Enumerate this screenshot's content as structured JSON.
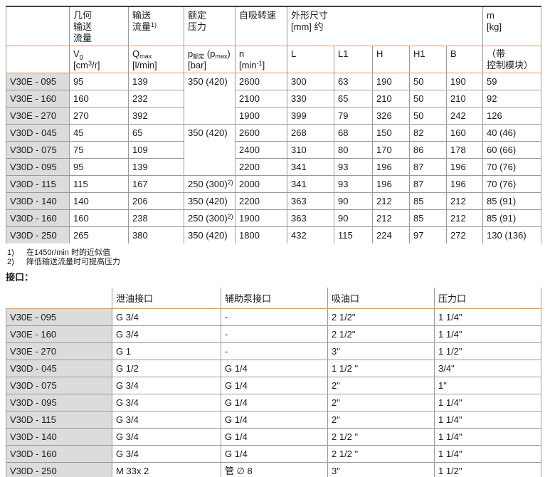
{
  "table1": {
    "h1": {
      "geo_flow": [
        "几何",
        "输送",
        "流量"
      ],
      "flow": [
        "输送",
        "流量"
      ],
      "flow_sup": "1)",
      "rated_pressure": [
        "额定",
        "压力"
      ],
      "speed": "自吸转速",
      "dims": [
        "外形尺寸",
        "[mm] 约"
      ],
      "mass": [
        "m",
        "[kg]"
      ]
    },
    "h2": {
      "vg_base": "V",
      "vg_sub": "g",
      "vg_unit_pre": "[cm",
      "vg_unit_sup": "3",
      "vg_unit_post": "/r]",
      "q_base": "Q",
      "q_sub": "max",
      "q_unit": "[l/min]",
      "p_base": "p",
      "p_sub": "额定",
      "p_mid": " (p",
      "p_sub2": "max",
      "p_close": ")",
      "p_unit": "[bar]",
      "n_base": "n",
      "n_unit_pre": "[min",
      "n_unit_sup": "-1",
      "n_unit_post": "]",
      "dim_l": "L",
      "dim_l1": "L1",
      "dim_h": "H",
      "dim_h1": "H1",
      "dim_b": "B",
      "mass_note": [
        "（带",
        "控制模块）"
      ]
    },
    "rows": [
      {
        "model": "V30E - 095",
        "vg": "95",
        "qmax": "139",
        "p": {
          "text": "350 (420)",
          "sup": "",
          "rowspan": 3
        },
        "n": "2600",
        "L": "300",
        "L1": "63",
        "H": "190",
        "H1": "50",
        "B": "190",
        "m": "59"
      },
      {
        "model": "V30E - 160",
        "vg": "160",
        "qmax": "232",
        "p": null,
        "n": "2100",
        "L": "330",
        "L1": "65",
        "H": "210",
        "H1": "50",
        "B": "210",
        "m": "92"
      },
      {
        "model": "V30E - 270",
        "vg": "270",
        "qmax": "392",
        "p": null,
        "n": "1900",
        "L": "399",
        "L1": "79",
        "H": "326",
        "H1": "50",
        "B": "242",
        "m": "126"
      },
      {
        "model": "V30D - 045",
        "vg": "45",
        "qmax": "65",
        "p": {
          "text": "350 (420)",
          "sup": "",
          "rowspan": 3
        },
        "n": "2600",
        "L": "268",
        "L1": "68",
        "H": "150",
        "H1": "82",
        "B": "160",
        "m": "40 (46)"
      },
      {
        "model": "V30D - 075",
        "vg": "75",
        "qmax": "109",
        "p": null,
        "n": "2400",
        "L": "310",
        "L1": "80",
        "H": "170",
        "H1": "86",
        "B": "178",
        "m": "60 (66)"
      },
      {
        "model": "V30D - 095",
        "vg": "95",
        "qmax": "139",
        "p": null,
        "n": "2200",
        "L": "341",
        "L1": "93",
        "H": "196",
        "H1": "87",
        "B": "196",
        "m": "70 (76)"
      },
      {
        "model": "V30D - 115",
        "vg": "115",
        "qmax": "167",
        "p": {
          "text": "250 (300)",
          "sup": "2)",
          "rowspan": 1
        },
        "n": "2000",
        "L": "341",
        "L1": "93",
        "H": "196",
        "H1": "87",
        "B": "196",
        "m": "70 (76)"
      },
      {
        "model": "V30D - 140",
        "vg": "140",
        "qmax": "206",
        "p": {
          "text": "350 (420)",
          "sup": "",
          "rowspan": 1
        },
        "n": "2200",
        "L": "363",
        "L1": "90",
        "H": "212",
        "H1": "85",
        "B": "212",
        "m": "85 (91)"
      },
      {
        "model": "V30D - 160",
        "vg": "160",
        "qmax": "238",
        "p": {
          "text": "250 (300)",
          "sup": "2)",
          "rowspan": 1
        },
        "n": "1900",
        "L": "363",
        "L1": "90",
        "H": "212",
        "H1": "85",
        "B": "212",
        "m": "85 (91)"
      },
      {
        "model": "V30D - 250",
        "vg": "265",
        "qmax": "380",
        "p": {
          "text": "350 (420)",
          "sup": "",
          "rowspan": 1
        },
        "n": "1800",
        "L": "432",
        "L1": "115",
        "H": "224",
        "H1": "97",
        "B": "272",
        "m": "130 (136)"
      }
    ]
  },
  "footnotes": [
    {
      "marker": "1)",
      "text": "在1450r/min 时的近似值"
    },
    {
      "marker": "2)",
      "text": "降低输送流量时可提高压力"
    }
  ],
  "ports_label": "接口：",
  "table2": {
    "headers": [
      "泄油接口",
      "辅助泵接口",
      "吸油口",
      "压力口"
    ],
    "rows": [
      {
        "model": "V30E - 095",
        "drain": "G 3/4",
        "aux": "-",
        "suction": "2 1/2\"",
        "pressure": "1 1/4\""
      },
      {
        "model": "V30E - 160",
        "drain": "G 3/4",
        "aux": "-",
        "suction": "2 1/2\"",
        "pressure": "1 1/4\""
      },
      {
        "model": "V30E - 270",
        "drain": "G 1",
        "aux": "-",
        "suction": "3\"",
        "pressure": "1 1/2\""
      },
      {
        "model": "V30D - 045",
        "drain": "G 1/2",
        "aux": "G 1/4",
        "suction": "1 1/2 \"",
        "pressure": "3/4\""
      },
      {
        "model": "V30D - 075",
        "drain": "G 3/4",
        "aux": "G 1/4",
        "suction": "2\"",
        "pressure": "1\""
      },
      {
        "model": "V30D - 095",
        "drain": "G 3/4",
        "aux": "G 1/4",
        "suction": "2\"",
        "pressure": "1 1/4\""
      },
      {
        "model": "V30D - 115",
        "drain": "G 3/4",
        "aux": "G 1/4",
        "suction": "2\"",
        "pressure": "1 1/4\""
      },
      {
        "model": "V30D - 140",
        "drain": "G 3/4",
        "aux": "G 1/4",
        "suction": "2 1/2 \"",
        "pressure": "1 1/4\""
      },
      {
        "model": "V30D - 160",
        "drain": "G 3/4",
        "aux": "G 1/4",
        "suction": "2 1/2 \"",
        "pressure": "1 1/4\""
      },
      {
        "model": "V30D - 250",
        "drain": "M 33x 2",
        "aux": "管 ∅ 8",
        "suction": "3\"",
        "pressure": "1 1/2\""
      }
    ]
  },
  "colors": {
    "accent_line": "#cf9f5e",
    "grid_line": "#9a9a9a",
    "top_border": "#3f3f3f",
    "label_bg": "#dcdcdc"
  }
}
